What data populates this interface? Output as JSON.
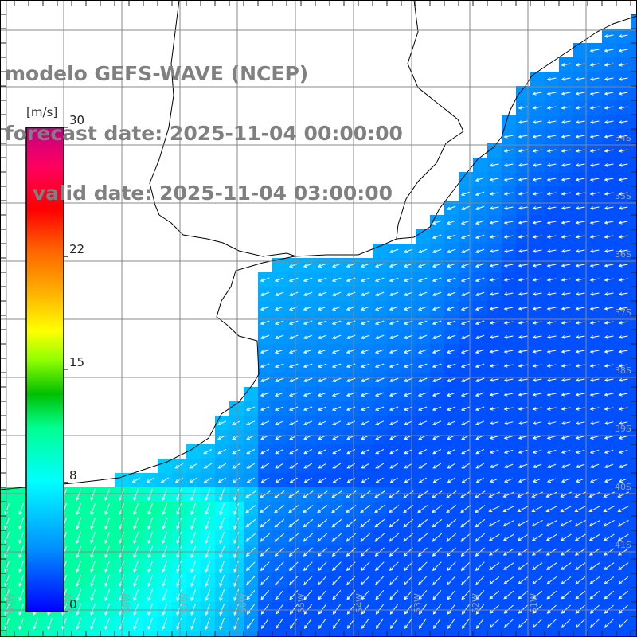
{
  "title": {
    "line1": "modelo GEFS-WAVE (NCEP)",
    "line2": "forecast date: 2025-11-04 00:00:00",
    "line3": "    valid date: 2025-11-04 03:00:00"
  },
  "colorbar": {
    "unit": "[m/s]",
    "ticks": [
      {
        "value": 30,
        "label": "30"
      },
      {
        "value": 22,
        "label": "22"
      },
      {
        "value": 15,
        "label": "15"
      },
      {
        "value": 8,
        "label": "8"
      },
      {
        "value": 0,
        "label": "0"
      }
    ],
    "colors": [
      "#0000ff",
      "#0080ff",
      "#00c0ff",
      "#00ffff",
      "#00ff80",
      "#00c000",
      "#80ff00",
      "#ffff00",
      "#ffb000",
      "#ff6000",
      "#ff0000",
      "#ff0060",
      "#c00080"
    ]
  },
  "lat_labels": [
    "34S",
    "35S",
    "36S",
    "37S",
    "38S",
    "39S",
    "40S",
    "41S"
  ],
  "lon_labels": [
    "60W",
    "59W",
    "58W",
    "57W",
    "56W",
    "55W",
    "54W",
    "53W",
    "52W",
    "51W"
  ],
  "field": {
    "wind_direction": "from east / northeast (arrows pointing southwest)",
    "typical_speed_range_ms": [
      3,
      9
    ]
  }
}
